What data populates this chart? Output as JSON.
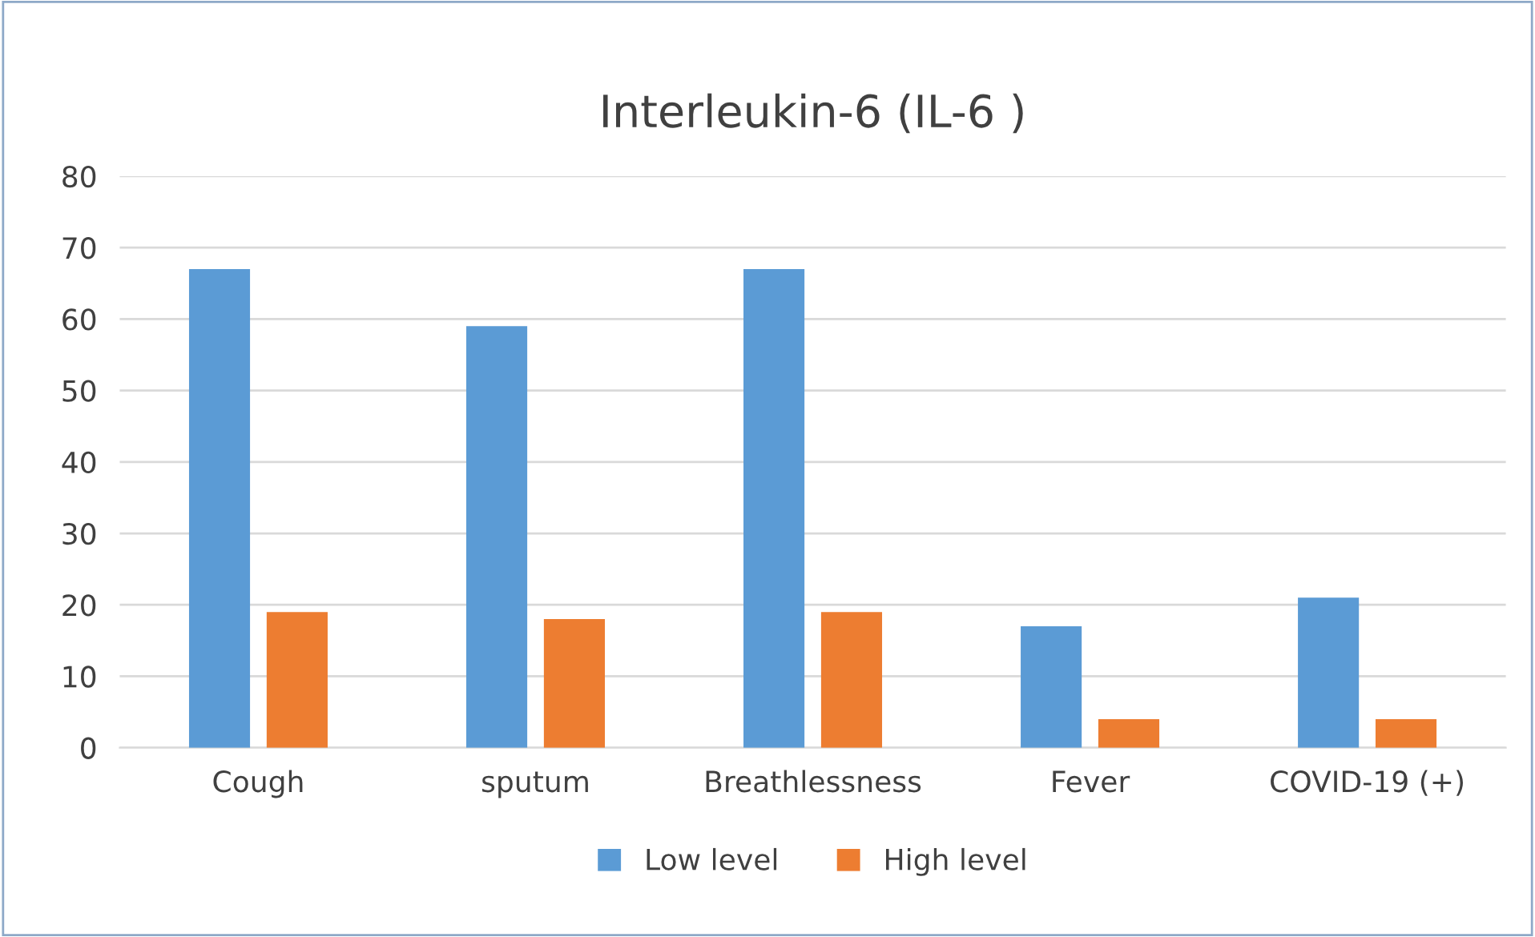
{
  "chart_data": {
    "type": "bar",
    "title": "Interleukin-6 (IL-6 )",
    "categories": [
      "Cough",
      "sputum",
      "Breathlessness",
      "Fever",
      "COVID-19 (+)"
    ],
    "series": [
      {
        "name": "Low level",
        "color": "#5b9bd5",
        "values": [
          67,
          59,
          67,
          17,
          21
        ]
      },
      {
        "name": "High level",
        "color": "#ed7d31",
        "values": [
          19,
          18,
          19,
          4,
          4
        ]
      }
    ],
    "ylim": [
      0,
      80
    ],
    "yticks": [
      0,
      10,
      20,
      30,
      40,
      50,
      60,
      70,
      80
    ],
    "grid": "y",
    "legend": "bottom"
  }
}
